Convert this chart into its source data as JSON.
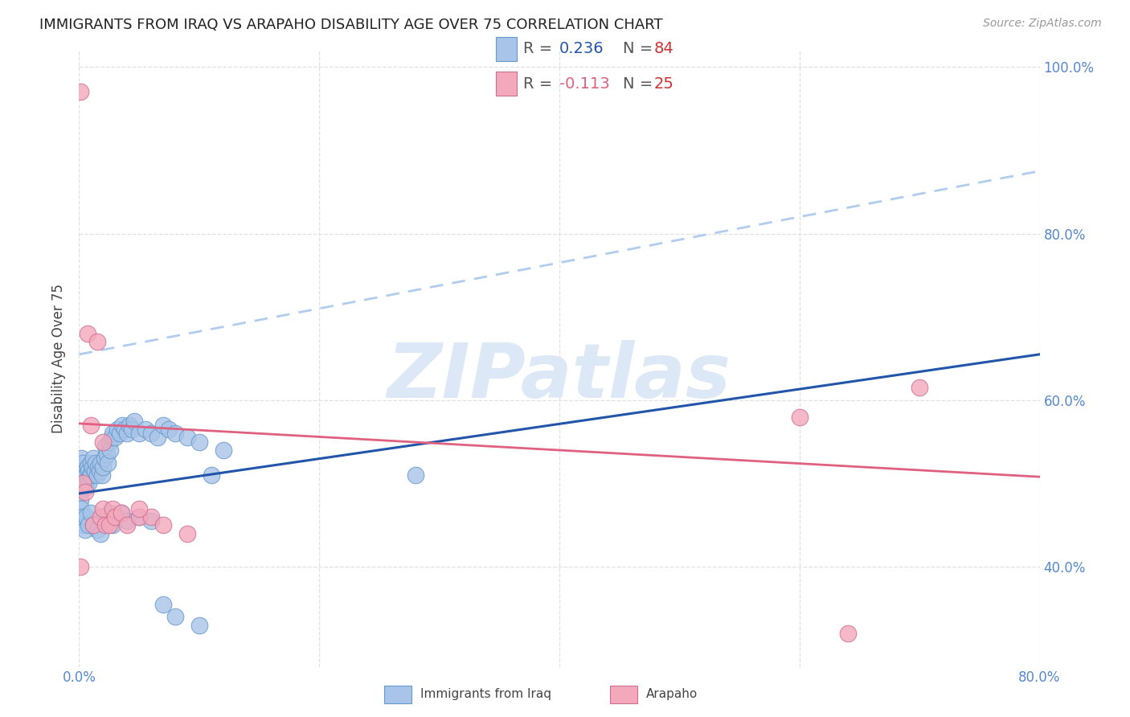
{
  "title": "IMMIGRANTS FROM IRAQ VS ARAPAHO DISABILITY AGE OVER 75 CORRELATION CHART",
  "source": "Source: ZipAtlas.com",
  "ylabel": "Disability Age Over 75",
  "xlim": [
    0.0,
    0.8
  ],
  "ylim": [
    0.28,
    1.02
  ],
  "y_ticks": [
    0.4,
    0.6,
    0.8,
    1.0
  ],
  "y_tick_labels": [
    "40.0%",
    "60.0%",
    "80.0%",
    "100.0%"
  ],
  "x_ticks": [
    0.0,
    0.2,
    0.4,
    0.6,
    0.8
  ],
  "x_tick_labels": [
    "0.0%",
    "",
    "",
    "",
    "80.0%"
  ],
  "blue_color": "#a8c4e8",
  "blue_line_color": "#2255aa",
  "blue_edge_color": "#6699cc",
  "pink_color": "#f4a8bc",
  "pink_line_color": "#e06080",
  "pink_edge_color": "#cc7090",
  "dashed_color": "#b0ccee",
  "tick_color": "#5588cc",
  "legend_R_blue": "0.236",
  "legend_N_blue": "84",
  "legend_R_pink": "-0.113",
  "legend_N_pink": "25",
  "blue_line_x0": 0.0,
  "blue_line_y0": 0.488,
  "blue_line_x1": 0.8,
  "blue_line_y1": 0.655,
  "pink_line_x0": 0.0,
  "pink_line_y0": 0.572,
  "pink_line_x1": 0.8,
  "pink_line_y1": 0.508,
  "dash_line_x0": 0.0,
  "dash_line_y0": 0.655,
  "dash_line_x1": 0.8,
  "dash_line_y1": 0.875,
  "watermark_text": "ZIPatlas",
  "watermark_color": "#dce8f5",
  "background_color": "#ffffff",
  "grid_color": "#e0e0e0",
  "blue_scatter_x": [
    0.001,
    0.001,
    0.001,
    0.001,
    0.002,
    0.002,
    0.002,
    0.003,
    0.003,
    0.004,
    0.004,
    0.005,
    0.005,
    0.006,
    0.006,
    0.007,
    0.007,
    0.008,
    0.008,
    0.009,
    0.01,
    0.01,
    0.011,
    0.012,
    0.013,
    0.014,
    0.015,
    0.016,
    0.017,
    0.018,
    0.019,
    0.02,
    0.021,
    0.022,
    0.023,
    0.024,
    0.025,
    0.026,
    0.027,
    0.028,
    0.03,
    0.032,
    0.034,
    0.036,
    0.038,
    0.04,
    0.042,
    0.044,
    0.046,
    0.05,
    0.055,
    0.06,
    0.065,
    0.07,
    0.075,
    0.08,
    0.09,
    0.1,
    0.11,
    0.12,
    0.001,
    0.002,
    0.003,
    0.004,
    0.005,
    0.006,
    0.008,
    0.01,
    0.012,
    0.015,
    0.018,
    0.02,
    0.022,
    0.025,
    0.028,
    0.03,
    0.035,
    0.04,
    0.05,
    0.06,
    0.07,
    0.08,
    0.1,
    0.28
  ],
  "blue_scatter_y": [
    0.5,
    0.52,
    0.49,
    0.51,
    0.53,
    0.495,
    0.515,
    0.505,
    0.525,
    0.51,
    0.5,
    0.515,
    0.495,
    0.51,
    0.5,
    0.52,
    0.505,
    0.515,
    0.5,
    0.51,
    0.525,
    0.51,
    0.52,
    0.53,
    0.515,
    0.525,
    0.51,
    0.52,
    0.515,
    0.525,
    0.51,
    0.52,
    0.53,
    0.545,
    0.535,
    0.525,
    0.55,
    0.54,
    0.555,
    0.56,
    0.555,
    0.565,
    0.56,
    0.57,
    0.565,
    0.56,
    0.57,
    0.565,
    0.575,
    0.56,
    0.565,
    0.56,
    0.555,
    0.57,
    0.565,
    0.56,
    0.555,
    0.55,
    0.51,
    0.54,
    0.48,
    0.47,
    0.46,
    0.45,
    0.445,
    0.46,
    0.45,
    0.465,
    0.45,
    0.445,
    0.44,
    0.455,
    0.46,
    0.465,
    0.45,
    0.46,
    0.465,
    0.455,
    0.46,
    0.455,
    0.355,
    0.34,
    0.33,
    0.51
  ],
  "pink_scatter_x": [
    0.001,
    0.003,
    0.005,
    0.007,
    0.01,
    0.012,
    0.015,
    0.018,
    0.02,
    0.022,
    0.025,
    0.028,
    0.03,
    0.035,
    0.04,
    0.05,
    0.06,
    0.07,
    0.09,
    0.6,
    0.64,
    0.7,
    0.001,
    0.05,
    0.02
  ],
  "pink_scatter_y": [
    0.97,
    0.5,
    0.49,
    0.68,
    0.57,
    0.45,
    0.67,
    0.46,
    0.47,
    0.45,
    0.45,
    0.47,
    0.46,
    0.465,
    0.45,
    0.46,
    0.46,
    0.45,
    0.44,
    0.58,
    0.32,
    0.615,
    0.4,
    0.47,
    0.55
  ]
}
